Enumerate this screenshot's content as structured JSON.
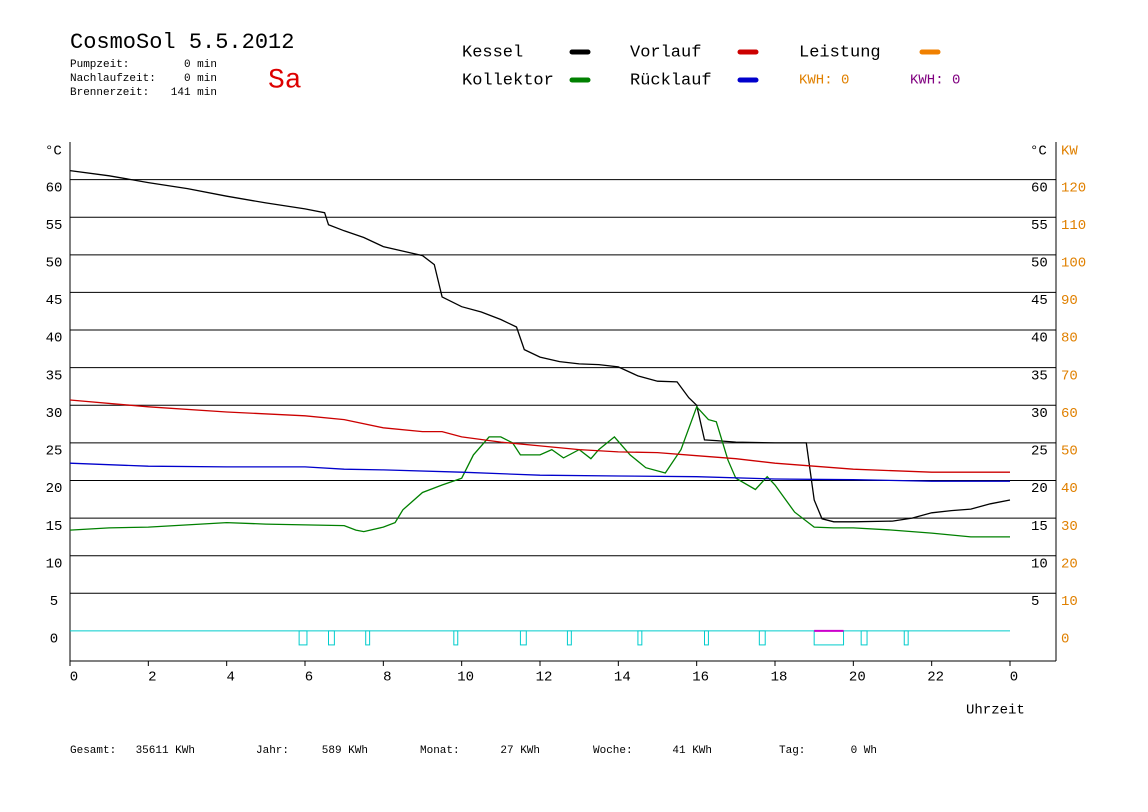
{
  "header": {
    "title": "CosmoSol 5.5.2012",
    "day": "Sa",
    "info": [
      [
        "Pumpzeit:",
        "0 min"
      ],
      [
        "Nachlaufzeit:",
        "0 min"
      ],
      [
        "Brennerzeit:",
        "141 min"
      ]
    ],
    "kwh_labels": [
      "KWH: 0",
      "KWH: 0"
    ]
  },
  "footer": [
    [
      "Gesamt:",
      "35611 KWh"
    ],
    [
      "Jahr:",
      "589 KWh"
    ],
    [
      "Monat:",
      "27 KWh"
    ],
    [
      "Woche:",
      "41 KWh"
    ],
    [
      "Tag:",
      "0 Wh"
    ]
  ],
  "chart_data": {
    "type": "line",
    "y_label": "°C",
    "y2_label_unit": "°C",
    "y2_label": "KW",
    "x_label": "Uhrzeit",
    "xlim": [
      0,
      25.2
    ],
    "xticks": [
      0,
      2,
      4,
      6,
      8,
      10,
      12,
      14,
      16,
      18,
      20,
      22,
      {
        "value": 24,
        "label": "0"
      }
    ],
    "ylim": [
      -4,
      65
    ],
    "yticks": [
      0,
      5,
      10,
      15,
      20,
      25,
      30,
      35,
      40,
      45,
      50,
      55,
      60
    ],
    "y2lim": [
      -8,
      130
    ],
    "y2ticks": [
      0,
      10,
      20,
      30,
      40,
      50,
      60,
      70,
      80,
      90,
      100,
      110,
      120
    ],
    "grid": true,
    "series": [
      {
        "name": "Kessel",
        "color": "#000000",
        "x": [
          0,
          1,
          2,
          3,
          4,
          5,
          6,
          6.5,
          6.6,
          7,
          7.5,
          8,
          8.5,
          9,
          9.3,
          9.5,
          10,
          10.5,
          11,
          11.4,
          11.6,
          12,
          12.5,
          13,
          13.5,
          14,
          14.5,
          15,
          15.5,
          15.8,
          16,
          16.2,
          16.5,
          17,
          18,
          18.8,
          19,
          19.2,
          19.5,
          20,
          21,
          21.5,
          22,
          22.5,
          23,
          23.5,
          24
        ],
        "values": [
          61.2,
          60.5,
          59.6,
          58.8,
          57.8,
          56.9,
          56.1,
          55.6,
          54,
          53.2,
          52.3,
          51.1,
          50.5,
          49.9,
          48.7,
          44.4,
          43.1,
          42.4,
          41.4,
          40.4,
          37.4,
          36.4,
          35.8,
          35.5,
          35.4,
          35.1,
          33.9,
          33.2,
          33.1,
          31,
          30,
          25.4,
          25.3,
          25.1,
          25,
          25,
          17.4,
          14.9,
          14.5,
          14.5,
          14.6,
          15,
          15.7,
          16,
          16.2,
          16.9,
          17.4
        ]
      },
      {
        "name": "Kollektor",
        "color": "#008000",
        "x": [
          0,
          1,
          2,
          3,
          4,
          5,
          6,
          7,
          7.3,
          7.5,
          8,
          8.3,
          8.5,
          9,
          9.5,
          10,
          10.3,
          10.7,
          11,
          11.3,
          11.5,
          12,
          12.3,
          12.6,
          13,
          13.3,
          13.5,
          13.9,
          14.3,
          14.7,
          15.2,
          15.6,
          16,
          16.3,
          16.5,
          16.8,
          17,
          17.5,
          17.8,
          18,
          18.5,
          19,
          19.5,
          20,
          21,
          22,
          23,
          24
        ],
        "values": [
          13.4,
          13.7,
          13.8,
          14.1,
          14.4,
          14.2,
          14.1,
          14,
          13.4,
          13.2,
          13.8,
          14.4,
          16.1,
          18.4,
          19.4,
          20.3,
          23.4,
          25.8,
          25.8,
          25,
          23.4,
          23.4,
          24.1,
          23,
          24.1,
          22.9,
          24.1,
          25.8,
          23.4,
          21.7,
          21,
          24.1,
          29.8,
          28.1,
          27.8,
          22.7,
          20.3,
          18.8,
          20.5,
          19.4,
          15.8,
          13.8,
          13.7,
          13.7,
          13.4,
          13,
          12.5,
          12.5
        ]
      },
      {
        "name": "Vorlauf",
        "color": "#cc0000",
        "x": [
          0,
          2,
          4,
          6,
          7,
          8,
          9,
          9.5,
          10,
          11,
          12,
          13,
          14,
          15,
          16,
          17,
          18,
          19,
          20,
          21,
          22,
          24
        ],
        "values": [
          30.7,
          29.8,
          29.1,
          28.6,
          28.1,
          27,
          26.5,
          26.5,
          25.8,
          25.1,
          24.6,
          24.1,
          23.8,
          23.7,
          23.3,
          22.9,
          22.3,
          21.9,
          21.5,
          21.3,
          21.1,
          21.1
        ]
      },
      {
        "name": "Rücklauf",
        "color": "#0000cc",
        "x": [
          0,
          2,
          4,
          6,
          7,
          8,
          10,
          12,
          14,
          16,
          18,
          20,
          22,
          24
        ],
        "values": [
          22.3,
          21.9,
          21.8,
          21.8,
          21.5,
          21.4,
          21.1,
          20.7,
          20.6,
          20.5,
          20.2,
          20.1,
          19.9,
          19.9
        ]
      },
      {
        "name": "Leistung",
        "color": "#f08000",
        "axis": "y2",
        "x": [],
        "values": []
      }
    ],
    "pump_color": "#00cccc",
    "pump_intervals": [
      [
        5.85,
        6.05
      ],
      [
        6.6,
        6.75
      ],
      [
        7.55,
        7.65
      ],
      [
        9.8,
        9.9
      ],
      [
        11.5,
        11.65
      ],
      [
        12.7,
        12.8
      ],
      [
        14.5,
        14.6
      ],
      [
        16.2,
        16.3
      ],
      [
        17.6,
        17.75
      ],
      [
        19.0,
        19.75
      ],
      [
        20.2,
        20.35
      ],
      [
        21.3,
        21.4
      ]
    ],
    "burner_color": "#cc00cc",
    "burner_intervals": [
      [
        19.0,
        19.75
      ]
    ],
    "kwh_colors": [
      "#e08000",
      "#800080"
    ]
  }
}
